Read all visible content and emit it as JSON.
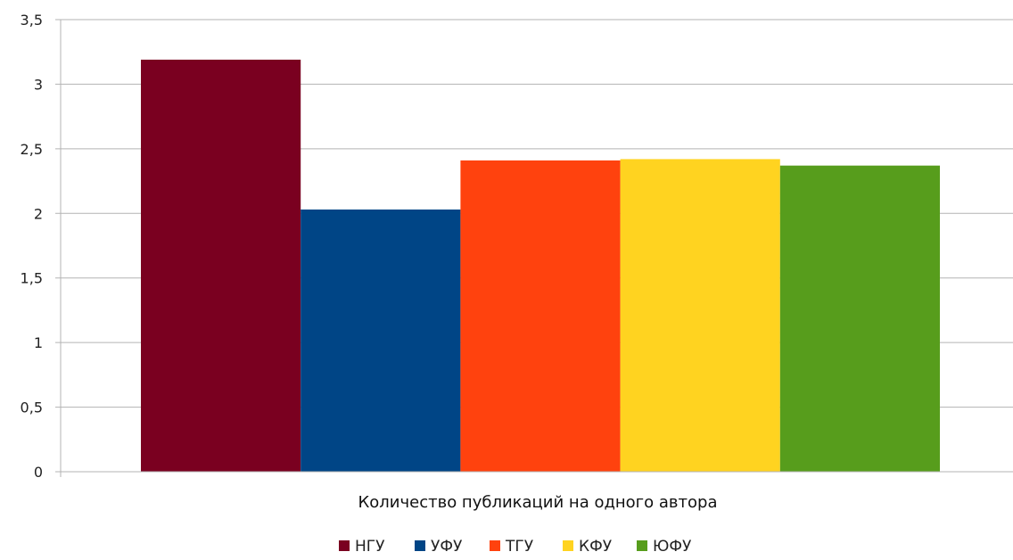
{
  "chart_data": {
    "type": "bar",
    "title": "",
    "xlabel": "",
    "ylabel": "",
    "categories": [
      "Количество публикаций на одного автора"
    ],
    "series": [
      {
        "name": "НГУ",
        "color": "#7a0020",
        "values": [
          3.19
        ]
      },
      {
        "name": "УФУ",
        "color": "#004586",
        "values": [
          2.03
        ]
      },
      {
        "name": "ТГУ",
        "color": "#ff420e",
        "values": [
          2.41
        ]
      },
      {
        "name": "КФУ",
        "color": "#ffd320",
        "values": [
          2.42
        ]
      },
      {
        "name": "ЮФУ",
        "color": "#579d1c",
        "values": [
          2.37
        ]
      }
    ],
    "ylim": [
      0,
      3.5
    ],
    "yticks": [
      "0",
      "0,5",
      "1",
      "1,5",
      "2",
      "2,5",
      "3",
      "3,5"
    ],
    "grid": true,
    "legend_position": "bottom"
  }
}
